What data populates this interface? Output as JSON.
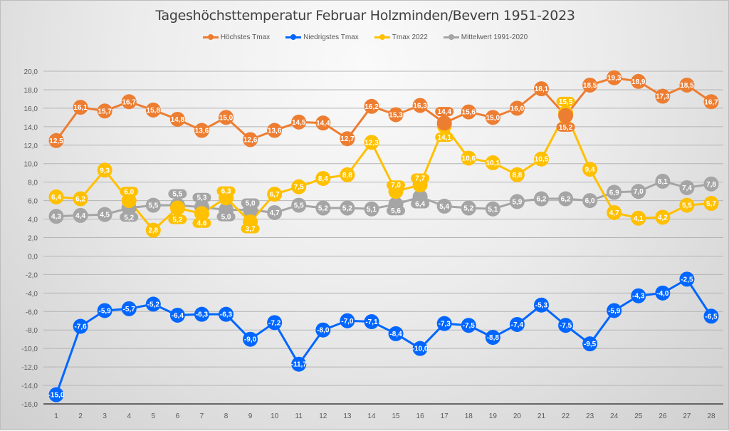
{
  "chart_data": {
    "type": "line",
    "title": "Tageshöchsttemperatur Februar Holzminden/Bevern 1951-2023",
    "xlabel": "",
    "ylabel": "",
    "x": [
      1,
      2,
      3,
      4,
      5,
      6,
      7,
      8,
      9,
      10,
      11,
      12,
      13,
      14,
      15,
      16,
      17,
      18,
      19,
      20,
      21,
      22,
      23,
      24,
      25,
      26,
      27,
      28
    ],
    "ylim": [
      -16,
      20
    ],
    "yticks": [
      20,
      18,
      16,
      14,
      12,
      10,
      8,
      6,
      4,
      2,
      0,
      -2,
      -4,
      -6,
      -8,
      -10,
      -12,
      -14,
      -16
    ],
    "ytick_labels": [
      "20,0",
      "18,0",
      "16,0",
      "14,0",
      "12,0",
      "10,0",
      "8,0",
      "6,0",
      "4,0",
      "2,0",
      "0,0",
      "-2,0",
      "-4,0",
      "-6,0",
      "-8,0",
      "-10,0",
      "-12,0",
      "-14,0",
      "-16,0"
    ],
    "grid": true,
    "legend_position": "top",
    "series": [
      {
        "name": "Höchstes Tmax",
        "color": "#ED7D31",
        "values": [
          12.5,
          16.1,
          15.7,
          16.7,
          15.8,
          14.8,
          13.6,
          15.0,
          12.6,
          13.6,
          14.5,
          14.4,
          12.7,
          16.2,
          15.3,
          16.3,
          14.4,
          15.6,
          15.0,
          16.0,
          18.1,
          15.2,
          18.5,
          19.3,
          18.9,
          17.3,
          18.5,
          16.7
        ]
      },
      {
        "name": "Niedrigstes Tmax",
        "color": "#0066FF",
        "values": [
          -15.0,
          -7.6,
          -5.9,
          -5.7,
          -5.2,
          -6.4,
          -6.3,
          -6.3,
          -9.0,
          -7.2,
          -11.7,
          -8.0,
          -7.0,
          -7.1,
          -8.4,
          -10.0,
          -7.3,
          -7.5,
          -8.8,
          -7.4,
          -5.3,
          -7.5,
          -9.5,
          -5.9,
          -4.3,
          -4.0,
          -2.5,
          -6.5
        ]
      },
      {
        "name": "Tmax 2022",
        "color": "#FFC000",
        "values": [
          6.4,
          6.2,
          9.3,
          6.0,
          2.8,
          5.2,
          4.6,
          6.3,
          3.7,
          6.7,
          7.5,
          8.4,
          8.8,
          12.3,
          7.0,
          7.7,
          14.1,
          10.6,
          10.1,
          8.8,
          10.5,
          15.5,
          9.4,
          4.7,
          4.1,
          4.2,
          5.5,
          5.7
        ]
      },
      {
        "name": "Mittelwert 1991-2020",
        "color": "#A5A5A5",
        "values": [
          4.3,
          4.4,
          4.5,
          5.2,
          5.5,
          5.5,
          5.3,
          5.0,
          5.0,
          4.7,
          5.5,
          5.2,
          5.2,
          5.1,
          5.6,
          6.4,
          5.4,
          5.2,
          5.1,
          5.9,
          6.2,
          6.2,
          6.0,
          6.9,
          7.0,
          8.1,
          7.4,
          7.8
        ]
      }
    ]
  }
}
